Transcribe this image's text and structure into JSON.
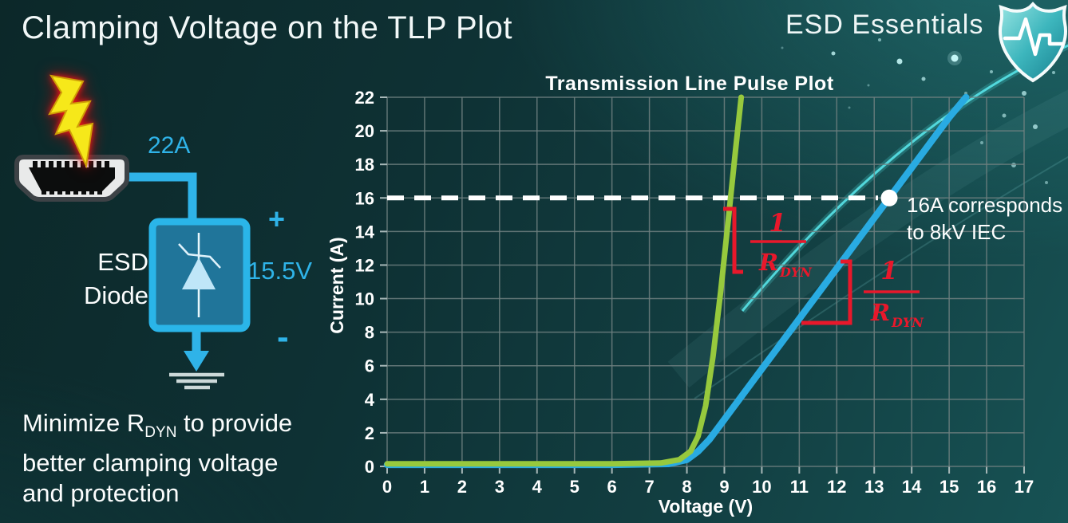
{
  "slide": {
    "title": "Clamping Voltage on the TLP Plot",
    "brand": "ESD Essentials",
    "note_line1_pre": "Minimize R",
    "note_line1_sub": "DYN",
    "note_line1_post": " to provide",
    "note_line2": "better clamping voltage",
    "note_line3": "and protection"
  },
  "diagram": {
    "surge_current": "22A",
    "device_line1": "ESD",
    "device_line2": "Diode",
    "polarity_plus": "+",
    "clamping_voltage": "15.5V",
    "polarity_minus": "-",
    "icons": [
      "lightning-bolt-icon",
      "hdmi-connector-icon",
      "zener-diode-icon",
      "ground-icon",
      "shield-pulse-icon"
    ]
  },
  "chart_data": {
    "type": "line",
    "title": "Transmission Line Pulse Plot",
    "xlabel": "Voltage (V)",
    "ylabel": "Current (A)",
    "xlim": [
      0,
      17
    ],
    "ylim": [
      0,
      22
    ],
    "x_ticks": [
      0,
      1,
      2,
      3,
      4,
      5,
      6,
      7,
      8,
      9,
      10,
      11,
      12,
      13,
      14,
      15,
      16,
      17
    ],
    "y_ticks": [
      0,
      2,
      4,
      6,
      8,
      10,
      12,
      14,
      16,
      18,
      20,
      22
    ],
    "grid": true,
    "series": [
      {
        "id": "blue-high-rdyn",
        "color": "#29abe2",
        "points": [
          [
            0,
            0.1
          ],
          [
            6,
            0.1
          ],
          [
            7.5,
            0.15
          ],
          [
            8.0,
            0.4
          ],
          [
            8.3,
            0.9
          ],
          [
            8.6,
            1.6
          ],
          [
            8.9,
            2.5
          ],
          [
            9.2,
            3.4
          ],
          [
            10,
            5.8
          ],
          [
            11,
            8.8
          ],
          [
            12,
            11.8
          ],
          [
            13,
            14.8
          ],
          [
            13.4,
            16
          ],
          [
            14,
            17.8
          ],
          [
            15,
            20.8
          ],
          [
            15.45,
            22
          ]
        ]
      },
      {
        "id": "green-low-rdyn",
        "color": "#97c93d",
        "points": [
          [
            0,
            0.15
          ],
          [
            6,
            0.15
          ],
          [
            7.3,
            0.2
          ],
          [
            7.8,
            0.4
          ],
          [
            8.1,
            0.9
          ],
          [
            8.3,
            1.8
          ],
          [
            8.5,
            3.6
          ],
          [
            8.7,
            6.6
          ],
          [
            8.9,
            10.4
          ],
          [
            9.1,
            14.6
          ],
          [
            9.3,
            18.9
          ],
          [
            9.45,
            22
          ]
        ]
      }
    ],
    "reference_line": {
      "y": 16,
      "color": "#ffffff",
      "style": "dashed"
    },
    "marker_point": {
      "x": 13.4,
      "y": 16,
      "label_line1": "16A corresponds",
      "label_line2": "to 8kV IEC"
    },
    "slope_annotation": {
      "numerator": "1",
      "denominator_base": "R",
      "denominator_sub": "DYN"
    }
  }
}
